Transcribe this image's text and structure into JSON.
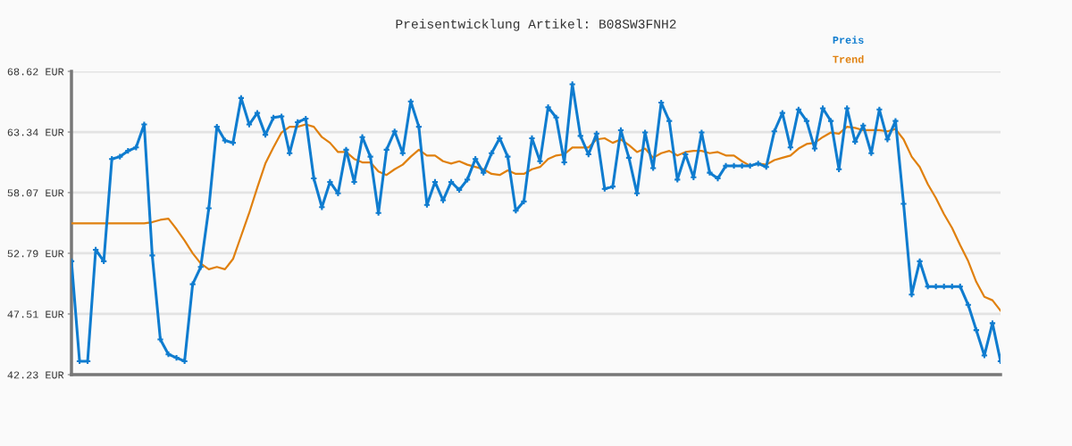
{
  "chart_data": {
    "type": "line",
    "title": "Preisentwicklung Artikel: B08SW3FNH2",
    "categories": [
      null,
      null,
      null,
      null,
      null,
      null,
      null,
      null,
      null,
      null,
      null,
      null,
      null,
      null,
      null,
      null,
      null,
      null,
      null,
      null,
      null,
      null,
      null,
      null,
      null,
      null,
      null,
      null,
      null,
      null,
      null,
      null,
      null,
      null,
      null,
      null,
      null,
      null,
      null,
      null,
      null,
      null,
      null,
      null,
      null,
      null,
      null,
      null,
      null,
      null,
      null,
      null,
      null,
      null,
      null,
      null,
      null,
      null,
      null,
      null,
      null,
      null,
      null,
      null,
      null,
      null,
      null,
      null,
      null,
      null,
      null,
      null,
      null,
      null,
      null,
      null,
      null,
      null,
      null,
      null,
      null,
      null,
      null,
      null,
      null,
      null,
      null,
      null,
      null,
      null,
      null,
      null,
      null,
      null,
      null,
      null,
      null,
      null,
      null,
      null,
      null,
      null,
      null,
      null,
      null,
      null,
      null,
      null,
      null,
      null,
      null,
      null,
      null,
      null,
      null,
      null
    ],
    "series": [
      {
        "name": "Preis",
        "color": "#0f7ccf",
        "marker": "cross",
        "values": [
          52.1,
          43.4,
          43.4,
          53.1,
          52.1,
          61.0,
          61.2,
          61.7,
          62.0,
          64.0,
          52.6,
          45.3,
          44.0,
          43.7,
          43.4,
          50.1,
          51.6,
          56.7,
          63.8,
          62.6,
          62.4,
          66.3,
          64.0,
          65.0,
          63.1,
          64.6,
          64.7,
          61.5,
          64.2,
          64.5,
          59.3,
          56.8,
          59.0,
          58.0,
          61.8,
          59.0,
          62.9,
          61.2,
          56.3,
          61.8,
          63.4,
          61.5,
          66.0,
          63.8,
          57.0,
          59.0,
          57.4,
          59.0,
          58.3,
          59.2,
          61.0,
          59.8,
          61.5,
          62.8,
          61.2,
          56.5,
          57.3,
          62.8,
          60.8,
          65.5,
          64.6,
          60.7,
          67.5,
          63.0,
          61.4,
          63.2,
          58.4,
          58.6,
          63.5,
          61.1,
          58.0,
          63.3,
          60.2,
          65.9,
          64.3,
          59.2,
          61.4,
          59.4,
          63.3,
          59.8,
          59.3,
          60.4,
          60.4,
          60.4,
          60.4,
          60.6,
          60.3,
          63.4,
          65.0,
          62.0,
          65.3,
          64.3,
          61.9,
          65.4,
          64.3,
          60.1,
          65.4,
          62.5,
          63.9,
          61.5,
          65.3,
          62.7,
          64.3,
          57.1,
          49.2,
          52.1,
          49.9,
          49.9,
          49.9,
          49.9,
          49.9,
          48.3,
          46.1,
          43.9,
          46.7,
          43.4
        ]
      },
      {
        "name": "Trend",
        "color": "#e0800e",
        "marker": "none",
        "values": [
          55.4,
          55.4,
          55.4,
          55.4,
          55.4,
          55.4,
          55.4,
          55.4,
          55.4,
          55.4,
          55.5,
          55.7,
          55.8,
          54.9,
          53.9,
          52.8,
          51.9,
          51.4,
          51.6,
          51.4,
          52.3,
          54.3,
          56.3,
          58.5,
          60.6,
          62.0,
          63.3,
          63.8,
          63.8,
          64.0,
          63.8,
          62.9,
          62.4,
          61.6,
          61.6,
          61.0,
          60.7,
          60.7,
          59.9,
          59.6,
          60.1,
          60.5,
          61.2,
          61.8,
          61.3,
          61.3,
          60.8,
          60.6,
          60.8,
          60.5,
          60.3,
          60.1,
          59.7,
          59.6,
          60.0,
          59.7,
          59.7,
          60.1,
          60.3,
          61.0,
          61.3,
          61.4,
          62.0,
          62.0,
          62.0,
          62.7,
          62.8,
          62.4,
          62.7,
          62.2,
          61.6,
          61.9,
          61.1,
          61.5,
          61.7,
          61.3,
          61.6,
          61.7,
          61.7,
          61.5,
          61.6,
          61.3,
          61.3,
          60.8,
          60.4,
          60.6,
          60.5,
          60.9,
          61.1,
          61.3,
          61.9,
          62.3,
          62.4,
          62.9,
          63.3,
          63.2,
          63.8,
          63.7,
          63.5,
          63.5,
          63.5,
          63.4,
          63.6,
          62.7,
          61.2,
          60.3,
          58.8,
          57.6,
          56.2,
          55.0,
          53.5,
          52.1,
          50.3,
          49.0,
          48.7,
          47.8
        ]
      }
    ],
    "ylim": [
      42.23,
      68.62
    ],
    "yticks": [
      {
        "value": 42.23,
        "label": "42.23 EUR"
      },
      {
        "value": 47.51,
        "label": "47.51 EUR"
      },
      {
        "value": 52.79,
        "label": "52.79 EUR"
      },
      {
        "value": 58.07,
        "label": "58.07 EUR"
      },
      {
        "value": 63.34,
        "label": "63.34 EUR"
      },
      {
        "value": 68.62,
        "label": "68.62 EUR"
      }
    ],
    "grid": "y",
    "legend": "top right",
    "tick_labels": "y",
    "line_style": "solid"
  }
}
